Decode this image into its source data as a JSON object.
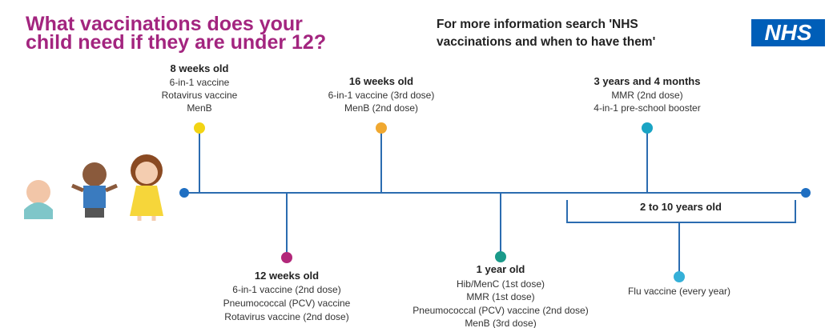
{
  "header": {
    "title_line1": "What vaccinations does your",
    "title_line2": "child need if they are under 12?",
    "info_line1": "For more information search 'NHS",
    "info_line2": "vaccinations and when to have them'",
    "logo": "NHS"
  },
  "milestones": [
    {
      "title": "8 weeks old",
      "items": [
        "6-in-1 vaccine",
        "Rotavirus vaccine",
        "MenB"
      ]
    },
    {
      "title": "12 weeks old",
      "items": [
        "6-in-1 vaccine (2nd dose)",
        "Pneumococcal (PCV) vaccine",
        "Rotavirus vaccine (2nd dose)"
      ]
    },
    {
      "title": "16 weeks old",
      "items": [
        "6-in-1 vaccine (3rd dose)",
        "MenB (2nd dose)"
      ]
    },
    {
      "title": "1 year old",
      "items": [
        "Hib/MenC (1st dose)",
        "MMR (1st dose)",
        "Pneumococcal (PCV) vaccine (2nd dose)",
        "MenB (3rd dose)"
      ]
    },
    {
      "title": "3 years and 4 months",
      "items": [
        "MMR (2nd dose)",
        "4-in-1 pre-school booster"
      ]
    }
  ],
  "range": {
    "title": "2 to 10 years old",
    "items": [
      "Flu vaccine (every year)"
    ]
  }
}
